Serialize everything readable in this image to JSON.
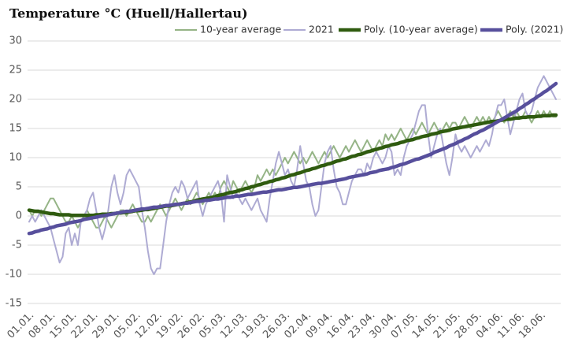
{
  "chart_data": {
    "type": "line",
    "title": "Temperature °C (Huell/Hallertau)",
    "categories": [
      "01.01.",
      null,
      null,
      null,
      null,
      null,
      null,
      "08.01.",
      null,
      null,
      null,
      null,
      null,
      null,
      "15.01.",
      null,
      null,
      null,
      null,
      null,
      null,
      "22.01.",
      null,
      null,
      null,
      null,
      null,
      null,
      "29.01.",
      null,
      null,
      null,
      null,
      null,
      null,
      "05.02.",
      null,
      null,
      null,
      null,
      null,
      null,
      "12.02.",
      null,
      null,
      null,
      null,
      null,
      null,
      "19.02.",
      null,
      null,
      null,
      null,
      null,
      null,
      "26.02.",
      null,
      null,
      null,
      null,
      null,
      null,
      "05.03.",
      null,
      null,
      null,
      null,
      null,
      null,
      "12.03.",
      null,
      null,
      null,
      null,
      null,
      null,
      "19.03.",
      null,
      null,
      null,
      null,
      null,
      null,
      "26.03.",
      null,
      null,
      null,
      null,
      null,
      null,
      "02.04.",
      null,
      null,
      null,
      null,
      null,
      null,
      "09.04.",
      null,
      null,
      null,
      null,
      null,
      null,
      "16.04.",
      null,
      null,
      null,
      null,
      null,
      null,
      "23.04.",
      null,
      null,
      null,
      null,
      null,
      null,
      "30.04.",
      null,
      null,
      null,
      null,
      null,
      null,
      "07.05.",
      null,
      null,
      null,
      null,
      null,
      null,
      "14.05.",
      null,
      null,
      null,
      null,
      null,
      null,
      "21.05.",
      null,
      null,
      null,
      null,
      null,
      null,
      "28.05.",
      null,
      null,
      null,
      null,
      null,
      null,
      "04.06.",
      null,
      null,
      null,
      null,
      null,
      null,
      "11.06.",
      null,
      null,
      null,
      null,
      null,
      null,
      "18.06.",
      null,
      null,
      null,
      null,
      null
    ],
    "series": [
      {
        "name": "10-year average",
        "color": "#95b486",
        "width": 2,
        "values": [
          1,
          0,
          1,
          1,
          0,
          1,
          2,
          3,
          3,
          2,
          1,
          0,
          -1,
          -1,
          0,
          -1,
          -2,
          -1,
          0,
          1,
          0,
          -1,
          -2,
          -2,
          -1,
          0,
          -1,
          -2,
          -1,
          0,
          1,
          1,
          0,
          1,
          2,
          1,
          0,
          -1,
          -1,
          0,
          -1,
          0,
          1,
          2,
          1,
          0,
          1,
          2,
          3,
          2,
          1,
          2,
          3,
          2,
          3,
          4,
          3,
          2,
          3,
          4,
          3,
          4,
          3,
          5,
          6,
          5,
          4,
          6,
          5,
          4,
          5,
          6,
          5,
          4,
          5,
          7,
          6,
          7,
          8,
          7,
          8,
          7,
          8,
          9,
          10,
          9,
          10,
          11,
          10,
          9,
          10,
          9,
          10,
          11,
          10,
          9,
          10,
          11,
          10,
          11,
          12,
          11,
          10,
          11,
          12,
          11,
          12,
          13,
          12,
          11,
          12,
          13,
          12,
          11,
          12,
          13,
          12,
          14,
          13,
          14,
          13,
          14,
          15,
          14,
          13,
          14,
          15,
          14,
          15,
          16,
          15,
          14,
          15,
          16,
          15,
          14,
          15,
          16,
          15,
          16,
          16,
          15,
          16,
          17,
          16,
          15,
          16,
          17,
          16,
          17,
          16,
          17,
          16,
          17,
          18,
          17,
          16,
          17,
          18,
          17,
          18,
          17,
          17,
          18,
          17,
          16,
          17,
          18,
          17,
          18,
          17,
          18,
          17,
          17
        ]
      },
      {
        "name": "2021",
        "color": "#aeabd3",
        "width": 2,
        "values": [
          -1,
          0,
          -1,
          0,
          1,
          0,
          -1,
          -2,
          -4,
          -6,
          -8,
          -7,
          -3,
          -2,
          -5,
          -3,
          -5,
          -1,
          0,
          1,
          3,
          4,
          1,
          -2,
          -4,
          -2,
          1,
          5,
          7,
          4,
          2,
          4,
          7,
          8,
          7,
          6,
          5,
          1,
          -2,
          -6,
          -9,
          -10,
          -9,
          -9,
          -5,
          -1,
          2,
          4,
          5,
          4,
          6,
          5,
          3,
          4,
          5,
          6,
          2,
          0,
          2,
          3,
          4,
          5,
          6,
          4,
          -1,
          7,
          5,
          3,
          4,
          3,
          2,
          3,
          2,
          1,
          2,
          3,
          1,
          0,
          -1,
          3,
          6,
          9,
          11,
          9,
          7,
          8,
          6,
          5,
          8,
          12,
          9,
          6,
          5,
          2,
          0,
          1,
          5,
          9,
          11,
          12,
          8,
          5,
          4,
          2,
          2,
          4,
          6,
          7,
          8,
          8,
          7,
          9,
          8,
          10,
          11,
          10,
          9,
          10,
          12,
          11,
          7,
          8,
          7,
          10,
          12,
          13,
          14,
          16,
          18,
          19,
          19,
          14,
          10,
          12,
          14,
          15,
          12,
          9,
          7,
          10,
          14,
          12,
          11,
          12,
          11,
          10,
          11,
          12,
          11,
          12,
          13,
          12,
          14,
          17,
          19,
          19,
          20,
          17,
          14,
          16,
          18,
          20,
          21,
          18,
          17,
          18,
          20,
          22,
          23,
          24,
          23,
          22,
          21,
          20
        ]
      },
      {
        "name": "Poly. (10-year average)",
        "color": "#2f5b0f",
        "width": 4.5,
        "values": [
          1.0,
          0.9,
          0.8,
          0.8,
          0.7,
          0.6,
          0.5,
          0.4,
          0.4,
          0.3,
          0.2,
          0.2,
          0.2,
          0.2,
          0.1,
          0.1,
          0.1,
          0.1,
          0.1,
          0.1,
          0.1,
          0.1,
          0.2,
          0.2,
          0.3,
          0.3,
          0.3,
          0.4,
          0.4,
          0.5,
          0.5,
          0.6,
          0.6,
          0.7,
          0.8,
          0.9,
          0.9,
          1.0,
          1.1,
          1.1,
          1.2,
          1.3,
          1.4,
          1.5,
          1.6,
          1.7,
          1.7,
          1.8,
          1.9,
          2.0,
          2.1,
          2.2,
          2.3,
          2.4,
          2.5,
          2.7,
          2.8,
          2.9,
          3.0,
          3.1,
          3.2,
          3.3,
          3.5,
          3.6,
          3.7,
          3.9,
          4.0,
          4.1,
          4.2,
          4.4,
          4.5,
          4.7,
          4.8,
          5.0,
          5.1,
          5.3,
          5.4,
          5.6,
          5.7,
          5.9,
          6.0,
          6.2,
          6.3,
          6.5,
          6.6,
          6.8,
          7.0,
          7.1,
          7.3,
          7.4,
          7.6,
          7.8,
          7.9,
          8.1,
          8.2,
          8.4,
          8.6,
          8.7,
          8.9,
          9.0,
          9.2,
          9.4,
          9.5,
          9.7,
          9.8,
          10.0,
          10.2,
          10.3,
          10.5,
          10.6,
          10.8,
          11.0,
          11.1,
          11.3,
          11.4,
          11.6,
          11.7,
          11.9,
          12.0,
          12.2,
          12.3,
          12.4,
          12.6,
          12.7,
          12.9,
          13.0,
          13.1,
          13.3,
          13.4,
          13.6,
          13.7,
          13.8,
          14.0,
          14.1,
          14.2,
          14.4,
          14.5,
          14.6,
          14.7,
          14.9,
          15.0,
          15.1,
          15.2,
          15.3,
          15.4,
          15.5,
          15.6,
          15.7,
          15.8,
          15.9,
          16.0,
          16.1,
          16.2,
          16.2,
          16.3,
          16.4,
          16.5,
          16.6,
          16.6,
          16.7,
          16.8,
          16.8,
          16.9,
          16.9,
          17.0,
          17.0,
          17.0,
          17.1,
          17.1,
          17.2,
          17.2,
          17.2,
          17.3,
          17.3
        ]
      },
      {
        "name": "Poly. (2021)",
        "color": "#574f9c",
        "width": 4.5,
        "values": [
          -3.0,
          -2.9,
          -2.7,
          -2.6,
          -2.4,
          -2.3,
          -2.2,
          -2.0,
          -1.9,
          -1.7,
          -1.6,
          -1.5,
          -1.4,
          -1.2,
          -1.1,
          -1.0,
          -0.9,
          -0.8,
          -0.6,
          -0.5,
          -0.4,
          -0.3,
          -0.2,
          -0.1,
          0.0,
          0.1,
          0.2,
          0.3,
          0.4,
          0.5,
          0.6,
          0.7,
          0.8,
          0.8,
          0.9,
          1.0,
          1.1,
          1.2,
          1.2,
          1.3,
          1.4,
          1.5,
          1.5,
          1.6,
          1.7,
          1.8,
          1.8,
          1.9,
          2.0,
          2.0,
          2.1,
          2.2,
          2.2,
          2.3,
          2.4,
          2.5,
          2.5,
          2.6,
          2.7,
          2.7,
          2.8,
          2.9,
          2.9,
          3.0,
          3.1,
          3.2,
          3.2,
          3.3,
          3.4,
          3.4,
          3.5,
          3.6,
          3.7,
          3.7,
          3.8,
          3.9,
          4.0,
          4.1,
          4.1,
          4.2,
          4.3,
          4.4,
          4.5,
          4.5,
          4.6,
          4.7,
          4.8,
          4.9,
          4.9,
          5.0,
          5.1,
          5.2,
          5.3,
          5.4,
          5.5,
          5.6,
          5.6,
          5.7,
          5.8,
          5.9,
          6.0,
          6.1,
          6.2,
          6.3,
          6.4,
          6.6,
          6.7,
          6.8,
          6.9,
          7.0,
          7.1,
          7.2,
          7.4,
          7.5,
          7.6,
          7.8,
          7.9,
          8.0,
          8.1,
          8.3,
          8.4,
          8.6,
          8.8,
          8.9,
          9.1,
          9.3,
          9.5,
          9.7,
          9.8,
          10.0,
          10.2,
          10.4,
          10.6,
          10.9,
          11.1,
          11.3,
          11.5,
          11.7,
          12.0,
          12.2,
          12.4,
          12.7,
          12.9,
          13.2,
          13.4,
          13.7,
          14.0,
          14.2,
          14.5,
          14.7,
          15.0,
          15.3,
          15.6,
          15.9,
          16.2,
          16.5,
          16.8,
          17.1,
          17.4,
          17.7,
          18.0,
          18.4,
          18.7,
          19.1,
          19.4,
          19.8,
          20.1,
          20.5,
          20.8,
          21.2,
          21.5,
          21.9,
          22.3,
          22.7
        ]
      }
    ],
    "ylim": [
      -15,
      30
    ],
    "yticks": [
      -15,
      -10,
      -5,
      0,
      5,
      10,
      15,
      20,
      25,
      30
    ],
    "grid": true,
    "legend": "top"
  }
}
